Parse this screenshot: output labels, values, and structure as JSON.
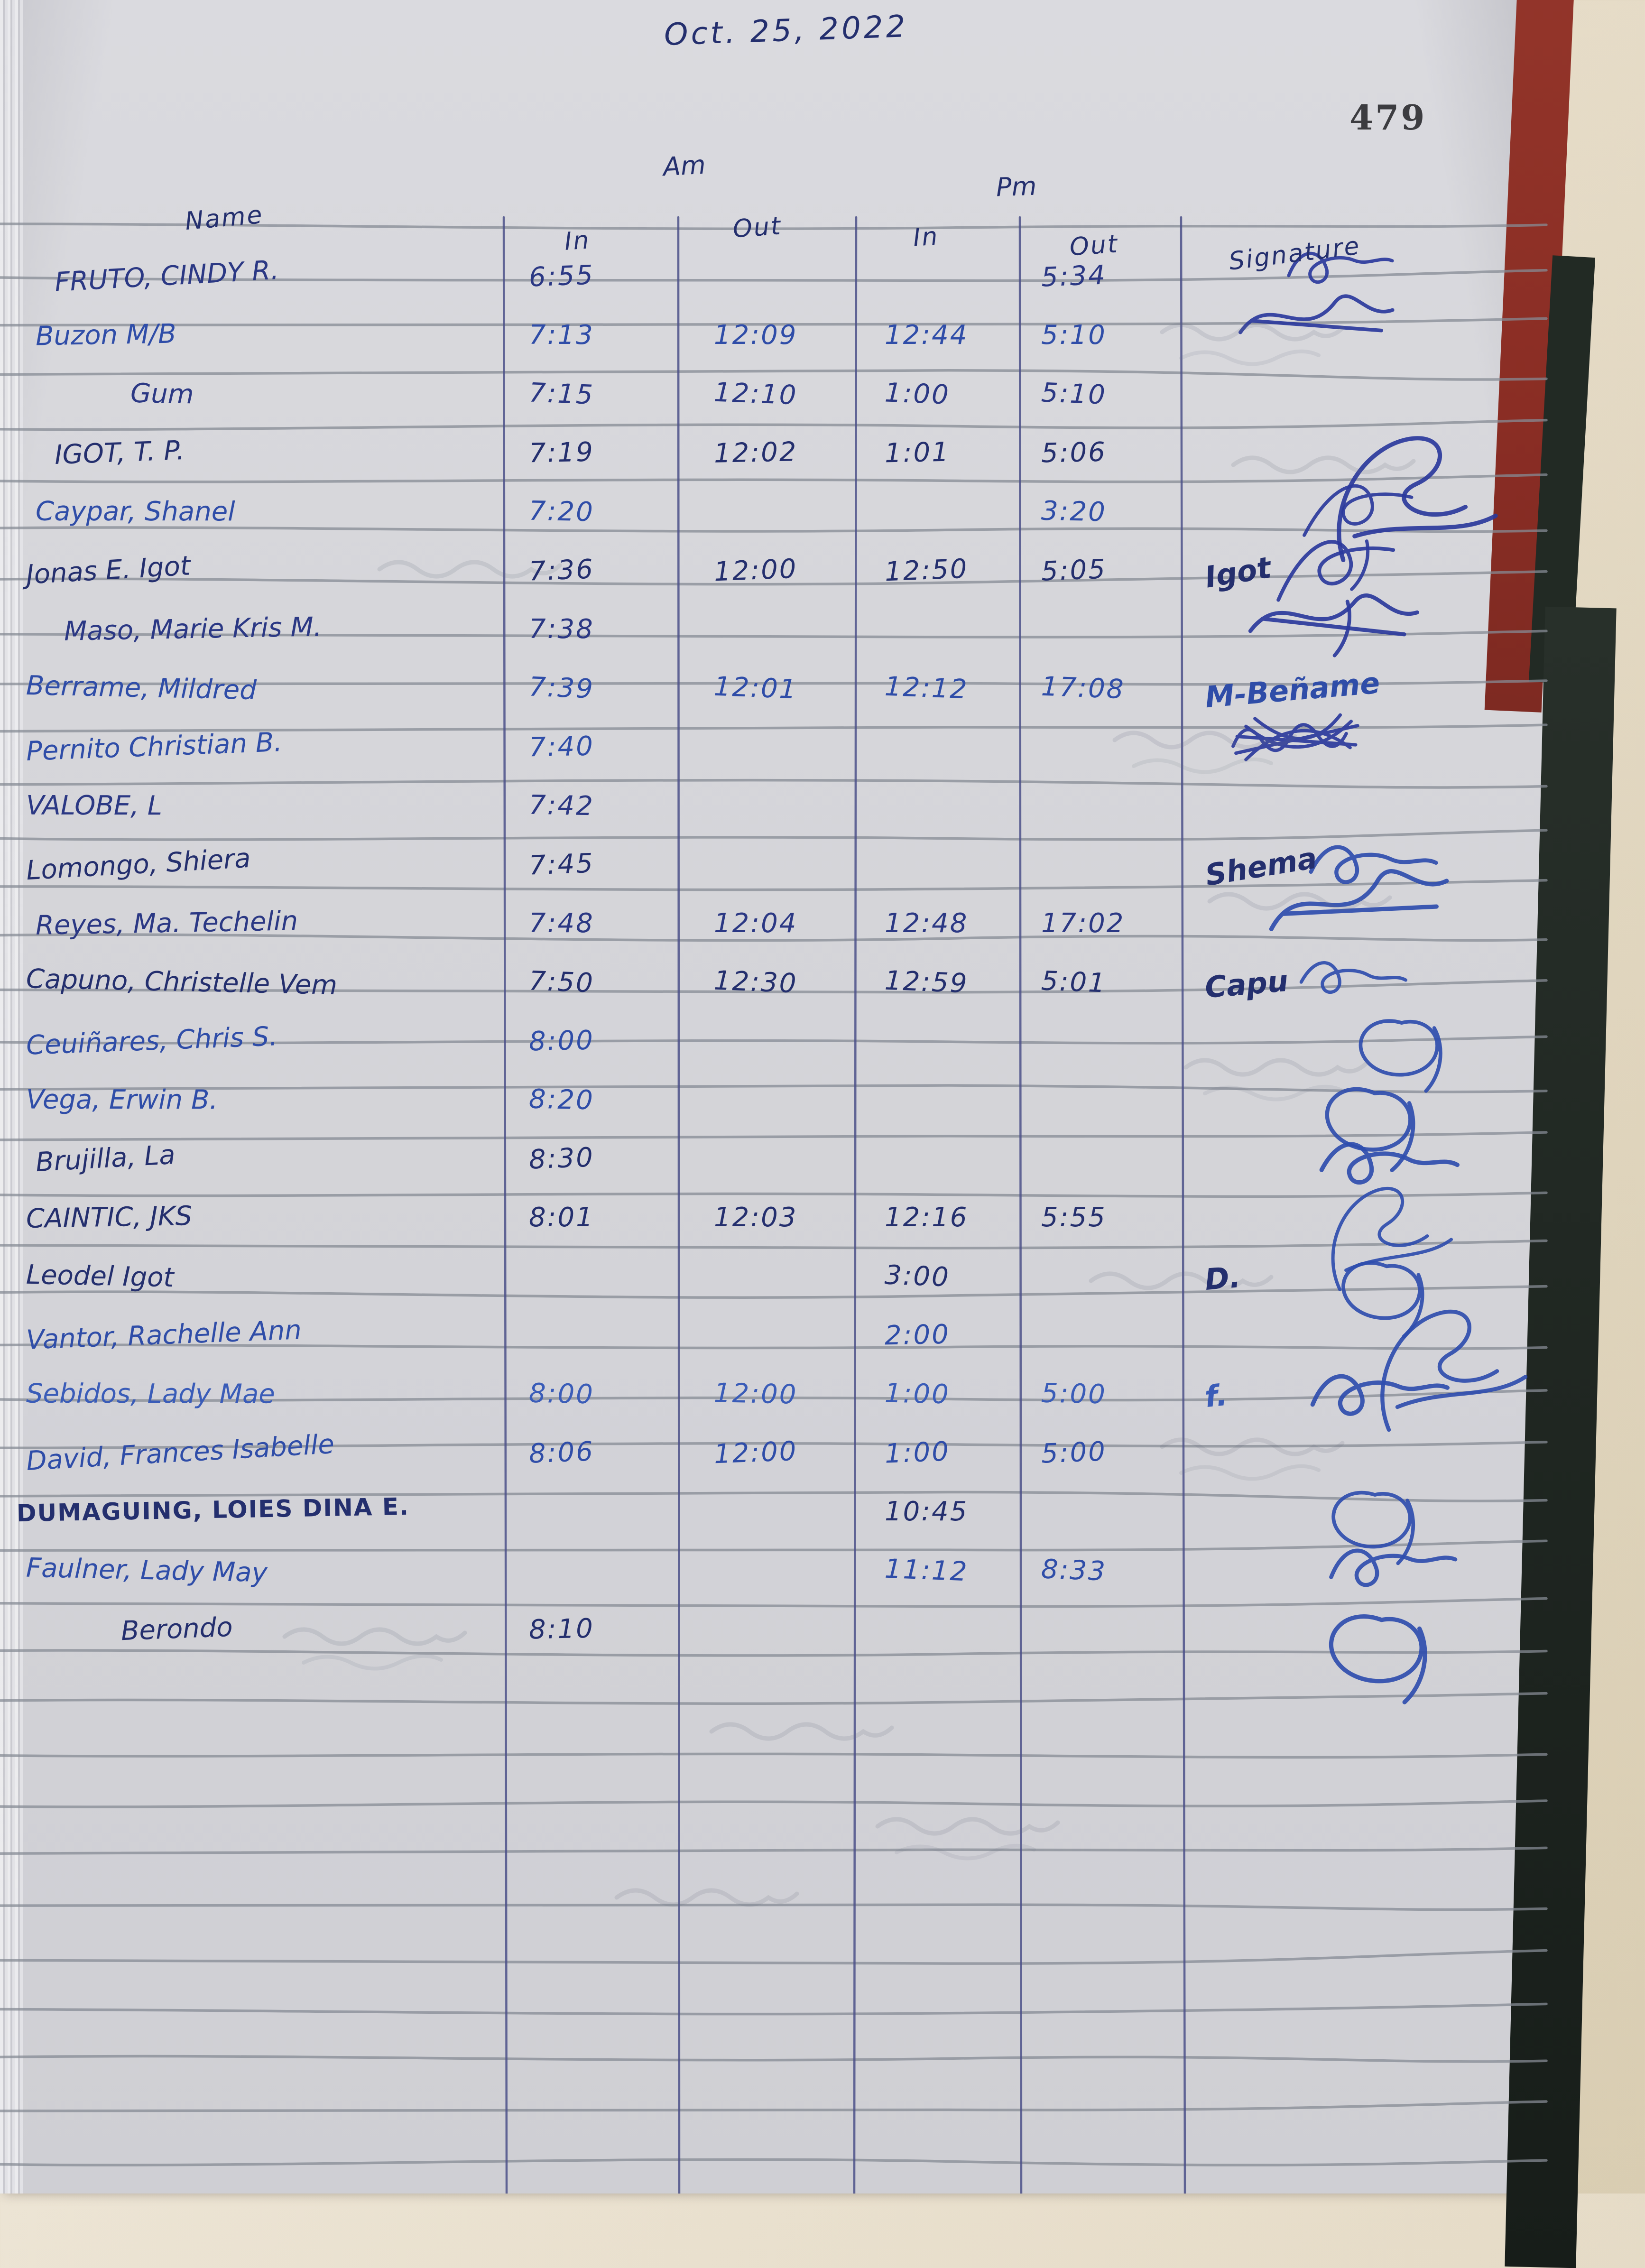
{
  "photo": {
    "date": "Oct. 25, 2022",
    "page_number": "479",
    "am_label": "Am",
    "pm_label": "Pm"
  },
  "colors": {
    "ink_blue": "#2b3884",
    "ink_bright": "#2f4da8",
    "rule_gray": "#868b94",
    "rule_blue": "#4b5088",
    "spine_red": "#8a2d24",
    "cover_dark": "#1f2621",
    "outer_beige": "#e6dcc8"
  },
  "table": {
    "headers": {
      "name": "Name",
      "am_in": "In",
      "am_out": "Out",
      "pm_in": "In",
      "pm_out": "Out",
      "signature": "Signature"
    },
    "rows": [
      {
        "name": "FRUTO, CINDY R.",
        "am_in": "6:55",
        "am_out": "",
        "pm_in": "",
        "pm_out": "5:34",
        "sig": 1,
        "sig_text": "",
        "ink": "a",
        "indent": 60
      },
      {
        "name": "Buzon M/B",
        "am_in": "7:13",
        "am_out": "12:09",
        "pm_in": "12:44",
        "pm_out": "5:10",
        "sig": 2,
        "sig_text": "",
        "ink": "b",
        "indent": 20
      },
      {
        "name": "Gum",
        "am_in": "7:15",
        "am_out": "12:10",
        "pm_in": "1:00",
        "pm_out": "5:10",
        "sig": 0,
        "sig_text": "",
        "ink": "a",
        "indent": 220
      },
      {
        "name": "IGOT, T. P.",
        "am_in": "7:19",
        "am_out": "12:02",
        "pm_in": "1:01",
        "pm_out": "5:06",
        "sig": 3,
        "sig_text": "",
        "ink": "c",
        "indent": 60
      },
      {
        "name": "Caypar, Shanel",
        "am_in": "7:20",
        "am_out": "",
        "pm_in": "",
        "pm_out": "3:20",
        "sig": 4,
        "sig_text": "",
        "ink": "b",
        "indent": 20
      },
      {
        "name": "Jonas E. Igot",
        "am_in": "7:36",
        "am_out": "12:00",
        "pm_in": "12:50",
        "pm_out": "5:05",
        "sig": 4,
        "sig_text": "Igot",
        "ink": "c",
        "indent": 0
      },
      {
        "name": "Maso, Marie Kris M.",
        "am_in": "7:38",
        "am_out": "",
        "pm_in": "",
        "pm_out": "",
        "sig": 2,
        "sig_text": "",
        "ink": "a",
        "indent": 80
      },
      {
        "name": "Berrame, Mildred",
        "am_in": "7:39",
        "am_out": "12:01",
        "pm_in": "12:12",
        "pm_out": "17:08",
        "sig": 0,
        "sig_text": "M-Beñame",
        "ink": "b",
        "indent": 0
      },
      {
        "name": "Pernito Christian B.",
        "am_in": "7:40",
        "am_out": "",
        "pm_in": "",
        "pm_out": "",
        "sig": 5,
        "sig_text": "",
        "ink": "b",
        "indent": 0
      },
      {
        "name": "VALOBE, L",
        "am_in": "7:42",
        "am_out": "",
        "pm_in": "",
        "pm_out": "",
        "sig": 0,
        "sig_text": "",
        "ink": "a",
        "indent": 0
      },
      {
        "name": "Lomongo, Shiera",
        "am_in": "7:45",
        "am_out": "",
        "pm_in": "",
        "pm_out": "",
        "sig": 1,
        "sig_text": "Shema",
        "ink": "c",
        "indent": 0
      },
      {
        "name": "Reyes, Ma. Techelin",
        "am_in": "7:48",
        "am_out": "12:04",
        "pm_in": "12:48",
        "pm_out": "17:02",
        "sig": 2,
        "sig_text": "",
        "ink": "a",
        "indent": 20
      },
      {
        "name": "Capuno, Christelle Vem",
        "am_in": "7:50",
        "am_out": "12:30",
        "pm_in": "12:59",
        "pm_out": "5:01",
        "sig": 1,
        "sig_text": "Capu",
        "ink": "c",
        "indent": 0
      },
      {
        "name": "Ceuiñares, Chris S.",
        "am_in": "8:00",
        "am_out": "",
        "pm_in": "",
        "pm_out": "",
        "sig": 6,
        "sig_text": "",
        "ink": "b",
        "indent": 0
      },
      {
        "name": "Vega, Erwin B.",
        "am_in": "8:20",
        "am_out": "",
        "pm_in": "",
        "pm_out": "",
        "sig": 6,
        "sig_text": "",
        "ink": "b",
        "indent": 0
      },
      {
        "name": "Brujilla, La",
        "am_in": "8:30",
        "am_out": "",
        "pm_in": "",
        "pm_out": "",
        "sig": 1,
        "sig_text": "",
        "ink": "c",
        "indent": 20
      },
      {
        "name": "CAINTIC, JKS",
        "am_in": "8:01",
        "am_out": "12:03",
        "pm_in": "12:16",
        "pm_out": "5:55",
        "sig": 3,
        "sig_text": "",
        "ink": "c",
        "indent": 0
      },
      {
        "name": "Leodel Igot",
        "am_in": "",
        "am_out": "",
        "pm_in": "3:00",
        "pm_out": "",
        "sig": 6,
        "sig_text": "D.",
        "ink": "c",
        "indent": 0
      },
      {
        "name": "Vantor, Rachelle Ann",
        "am_in": "",
        "am_out": "",
        "pm_in": "2:00",
        "pm_out": "",
        "sig": 3,
        "sig_text": "",
        "ink": "b",
        "indent": 0
      },
      {
        "name": "Sebidos, Lady Mae",
        "am_in": "8:00",
        "am_out": "12:00",
        "pm_in": "1:00",
        "pm_out": "5:00",
        "sig": 1,
        "sig_text": "f.",
        "ink": "d",
        "indent": 0
      },
      {
        "name": "David, Frances Isabelle",
        "am_in": "8:06",
        "am_out": "12:00",
        "pm_in": "1:00",
        "pm_out": "5:00",
        "sig": 0,
        "sig_text": "",
        "ink": "b",
        "indent": 0
      },
      {
        "name": "DUMAGUING, LOIES DINA E.",
        "am_in": "",
        "am_out": "",
        "pm_in": "10:45",
        "pm_out": "",
        "sig": 6,
        "sig_text": "",
        "ink": "c",
        "indent": -20,
        "caps": true
      },
      {
        "name": "Faulner, Lady May",
        "am_in": "",
        "am_out": "",
        "pm_in": "11:12",
        "pm_out": "8:33",
        "sig": 1,
        "sig_text": "",
        "ink": "b",
        "indent": 0
      },
      {
        "name": "Berondo",
        "am_in": "8:10",
        "am_out": "",
        "pm_in": "",
        "pm_out": "",
        "sig": 6,
        "sig_text": "",
        "ink": "c",
        "indent": 200
      }
    ]
  }
}
